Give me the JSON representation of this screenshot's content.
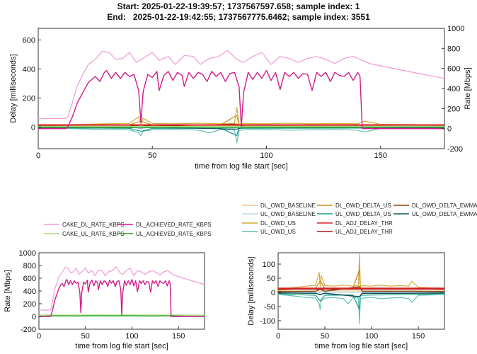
{
  "header": {
    "line1": "Start: 2025-01-22-19:39:57; 1737567597.658; sample index: 1",
    "line2": "End:   2025-01-22-19:42:55; 1737567775.6462; sample index: 3551"
  },
  "colors": {
    "delay_axis": "#1f77b4",
    "rate_axis": "#d95319",
    "cake_dl": "#f29ad8",
    "dl_achieved": "#d01c8b",
    "cake_ul": "#a6dc7a",
    "ul_achieved": "#2ca02c",
    "dl_owd_baseline": "#e3c98a",
    "ul_owd_baseline": "#b9d8ee",
    "dl_owd_us": "#d9a93a",
    "ul_owd_us": "#5bc2b4",
    "dl_owd_delta_us": "#c98d18",
    "ul_owd_delta_us": "#1a9a8a",
    "dl_adj_delay_thr": "#e02020",
    "ul_adj_delay_thr": "#b81818",
    "dl_owd_delta_ewma_us": "#8c4a10",
    "ul_owd_delta_ewma_us": "#10505a"
  },
  "chart_data": [
    {
      "id": "top",
      "type": "line",
      "title": "",
      "xlabel": "time from log file start [sec]",
      "ylabel_left": "Delay [milliseconds]",
      "ylabel_right": "Rate [Mbps]",
      "xlim": [
        0,
        178
      ],
      "ylim_left": [
        -150,
        680
      ],
      "ylim_right": [
        -200,
        1000
      ],
      "xticks": [
        "0",
        "50",
        "100",
        "150"
      ],
      "yticks_left": [
        "0",
        "200",
        "400",
        "600"
      ],
      "yticks_right": [
        "-200",
        "0",
        "200",
        "400",
        "600",
        "800",
        "1000"
      ],
      "series": [
        {
          "name": "CAKE_DL_RATE_KBPS",
          "axis": "right",
          "x": [
            0,
            12,
            13,
            15,
            17,
            20,
            22,
            25,
            28,
            31,
            34,
            37,
            40,
            43,
            46,
            50,
            53,
            57,
            60,
            64,
            68,
            71,
            75,
            79,
            83,
            87,
            90,
            94,
            98,
            102,
            106,
            110,
            114,
            118,
            122,
            126,
            130,
            134,
            138,
            141,
            142,
            145,
            160,
            178
          ],
          "y": [
            100,
            100,
            120,
            260,
            420,
            560,
            640,
            690,
            770,
            760,
            690,
            700,
            760,
            660,
            700,
            760,
            680,
            720,
            640,
            730,
            720,
            640,
            700,
            720,
            780,
            690,
            660,
            720,
            760,
            640,
            720,
            700,
            660,
            700,
            720,
            690,
            650,
            700,
            720,
            690,
            680,
            650,
            580,
            500
          ]
        },
        {
          "name": "DL_ACHIEVED_RATE_KBPS",
          "axis": "right",
          "x": [
            0,
            12,
            13,
            15,
            17,
            20,
            22,
            25,
            27,
            29,
            30,
            32,
            34,
            36,
            38,
            40,
            42,
            44,
            45,
            46,
            48,
            50,
            52,
            53,
            55,
            57,
            59,
            61,
            63,
            64,
            66,
            68,
            70,
            72,
            74,
            76,
            78,
            80,
            82,
            84,
            86,
            88,
            89,
            90,
            92,
            94,
            96,
            98,
            100,
            102,
            104,
            106,
            108,
            110,
            112,
            114,
            116,
            118,
            120,
            122,
            124,
            126,
            128,
            130,
            132,
            134,
            136,
            138,
            140,
            141,
            142,
            160,
            178
          ],
          "y": [
            0,
            0,
            20,
            120,
            250,
            380,
            460,
            520,
            470,
            560,
            580,
            500,
            560,
            500,
            560,
            520,
            540,
            380,
            60,
            370,
            540,
            510,
            570,
            380,
            530,
            570,
            480,
            560,
            530,
            420,
            560,
            500,
            560,
            540,
            470,
            570,
            520,
            560,
            470,
            550,
            560,
            420,
            20,
            360,
            560,
            490,
            560,
            500,
            580,
            480,
            560,
            390,
            560,
            520,
            560,
            500,
            550,
            540,
            380,
            560,
            520,
            560,
            470,
            560,
            530,
            520,
            560,
            480,
            560,
            520,
            0,
            0,
            0
          ]
        },
        {
          "name": "CAKE_UL_RATE_KBPS",
          "axis": "right",
          "x": [
            0,
            20,
            40,
            60,
            80,
            100,
            120,
            142,
            160,
            178
          ],
          "y": [
            22,
            22,
            22,
            22,
            22,
            22,
            22,
            22,
            22,
            22
          ]
        },
        {
          "name": "UL_ACHIEVED_RATE_KBPS",
          "axis": "right",
          "x": [
            0,
            20,
            40,
            60,
            80,
            100,
            120,
            142,
            160,
            178
          ],
          "y": [
            5,
            10,
            8,
            12,
            9,
            11,
            8,
            10,
            5,
            5
          ]
        },
        {
          "name": "DL_OWD_BASELINE",
          "axis": "left",
          "x": [
            0,
            178
          ],
          "y": [
            5,
            5
          ]
        },
        {
          "name": "UL_OWD_BASELINE",
          "axis": "left",
          "x": [
            0,
            178
          ],
          "y": [
            0,
            0
          ]
        },
        {
          "name": "DL_OWD_US",
          "axis": "left",
          "x": [
            0,
            10,
            20,
            30,
            40,
            44,
            45,
            46,
            50,
            60,
            70,
            80,
            86,
            87,
            88,
            90,
            100,
            110,
            120,
            130,
            140,
            143,
            150,
            178
          ],
          "y": [
            12,
            14,
            18,
            22,
            25,
            70,
            20,
            60,
            24,
            22,
            26,
            22,
            24,
            135,
            20,
            24,
            22,
            26,
            22,
            24,
            22,
            40,
            18,
            14
          ]
        },
        {
          "name": "UL_OWD_US",
          "axis": "left",
          "x": [
            0,
            10,
            20,
            30,
            40,
            44,
            45,
            46,
            50,
            60,
            70,
            75,
            80,
            86,
            87,
            88,
            90,
            100,
            110,
            120,
            130,
            140,
            143,
            150,
            178
          ],
          "y": [
            -8,
            -10,
            -14,
            -18,
            -20,
            -40,
            -60,
            -30,
            -20,
            -18,
            -22,
            -40,
            -18,
            -20,
            -110,
            -25,
            -20,
            -18,
            -22,
            -20,
            -18,
            -22,
            -35,
            -10,
            -8
          ]
        },
        {
          "name": "DL_OWD_DELTA_US",
          "axis": "left",
          "x": [
            0,
            20,
            40,
            45,
            50,
            80,
            87,
            88,
            100,
            140,
            178
          ],
          "y": [
            8,
            12,
            15,
            40,
            14,
            15,
            80,
            14,
            15,
            14,
            10
          ]
        },
        {
          "name": "UL_OWD_DELTA_US",
          "axis": "left",
          "x": [
            0,
            20,
            40,
            45,
            50,
            80,
            87,
            88,
            100,
            140,
            178
          ],
          "y": [
            -4,
            -8,
            -10,
            -30,
            -10,
            -9,
            -60,
            -10,
            -9,
            -8,
            -4
          ]
        },
        {
          "name": "DL_ADJ_DELAY_THR",
          "axis": "left",
          "x": [
            0,
            178
          ],
          "y": [
            15,
            15
          ]
        },
        {
          "name": "UL_ADJ_DELAY_THR",
          "axis": "left",
          "x": [
            0,
            178
          ],
          "y": [
            12,
            12
          ]
        },
        {
          "name": "DL_OWD_DELTA_EWMA_US",
          "axis": "left",
          "x": [
            0,
            40,
            45,
            50,
            87,
            90,
            140,
            178
          ],
          "y": [
            3,
            4,
            12,
            4,
            20,
            4,
            4,
            3
          ]
        },
        {
          "name": "UL_OWD_DELTA_EWMA_US",
          "axis": "left",
          "x": [
            0,
            40,
            45,
            50,
            87,
            90,
            140,
            178
          ],
          "y": [
            -2,
            -3,
            -8,
            -3,
            -15,
            -3,
            -3,
            -2
          ]
        }
      ]
    },
    {
      "id": "bottom_left",
      "type": "line",
      "title": "",
      "xlabel": "time from log file start [sec]",
      "ylabel": "Rate [Mbps]",
      "xlim": [
        0,
        178
      ],
      "ylim": [
        -200,
        1000
      ],
      "xticks": [
        "0",
        "50",
        "100",
        "150"
      ],
      "yticks": [
        "-200",
        "0",
        "200",
        "400",
        "600",
        "800",
        "1000"
      ],
      "legend": [
        "CAKE_DL_RATE_KBPS",
        "DL_ACHIEVED_RATE_KBPS",
        "CAKE_UL_RATE_KBPS",
        "UL_ACHIEVED_RATE_KBPS"
      ]
    },
    {
      "id": "bottom_right",
      "type": "line",
      "title": "",
      "xlabel": "time from log file start [sec]",
      "ylabel": "Delay [milliseconds]",
      "xlim": [
        0,
        178
      ],
      "ylim": [
        -130,
        140
      ],
      "xticks": [
        "0",
        "50",
        "100",
        "150"
      ],
      "yticks": [
        "-100",
        "-50",
        "0",
        "50",
        "100"
      ],
      "legend": [
        "DL_OWD_BASELINE",
        "UL_OWD_BASELINE",
        "DL_OWD_US",
        "UL_OWD_US",
        "DL_OWD_DELTA_US",
        "UL_OWD_DELTA_US",
        "DL_ADJ_DELAY_THR",
        "UL_ADJ_DELAY_THR",
        "DL_OWD_DELTA_EWMA_US",
        "UL_OWD_DELTA_EWMA_US"
      ]
    }
  ]
}
